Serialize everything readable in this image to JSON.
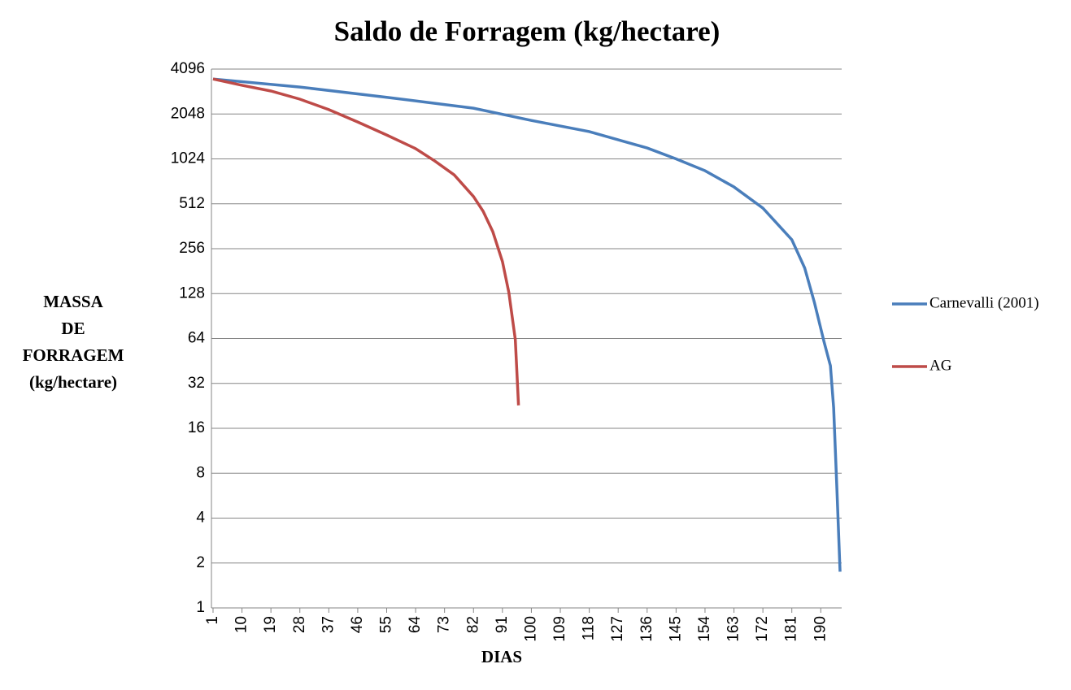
{
  "chart_data": {
    "type": "line",
    "title": "Saldo de Forragem (kg/hectare)",
    "xlabel": "DIAS",
    "ylabel": [
      "MASSA",
      "DE",
      "FORRAGEM",
      "(kg/hectare)"
    ],
    "ylog": true,
    "log_base": 2,
    "grid": true,
    "legend": "right",
    "xlim": [
      0.5,
      196.5
    ],
    "xticks": [
      1,
      10,
      19,
      28,
      37,
      46,
      55,
      64,
      73,
      82,
      91,
      100,
      109,
      118,
      127,
      136,
      145,
      154,
      163,
      172,
      181,
      190
    ],
    "ylim": [
      1,
      4096
    ],
    "yticks": [
      1,
      2,
      4,
      8,
      16,
      32,
      64,
      128,
      256,
      512,
      1024,
      2048,
      4096
    ],
    "series": [
      {
        "name": "Carnevalli (2001)",
        "color": "#4a7ebb",
        "x": [
          1,
          28,
          55,
          82,
          100,
          118,
          136,
          145,
          154,
          163,
          172,
          181,
          185,
          188,
          191,
          193,
          194,
          195,
          196
        ],
        "values": [
          3515,
          3104,
          2650,
          2240,
          1853,
          1560,
          1212,
          1024,
          853,
          664,
          479,
          294,
          190,
          112,
          61,
          42,
          22,
          6.4,
          1.75
        ]
      },
      {
        "name": "AG",
        "color": "#be4b48",
        "x": [
          1,
          10,
          19,
          28,
          37,
          46,
          55,
          64,
          70,
          76,
          82,
          85,
          88,
          91,
          93,
          95,
          96
        ],
        "values": [
          3515,
          3190,
          2920,
          2575,
          2190,
          1810,
          1480,
          1200,
          990,
          800,
          573,
          456,
          333,
          210,
          130,
          63,
          22.8
        ]
      }
    ]
  }
}
